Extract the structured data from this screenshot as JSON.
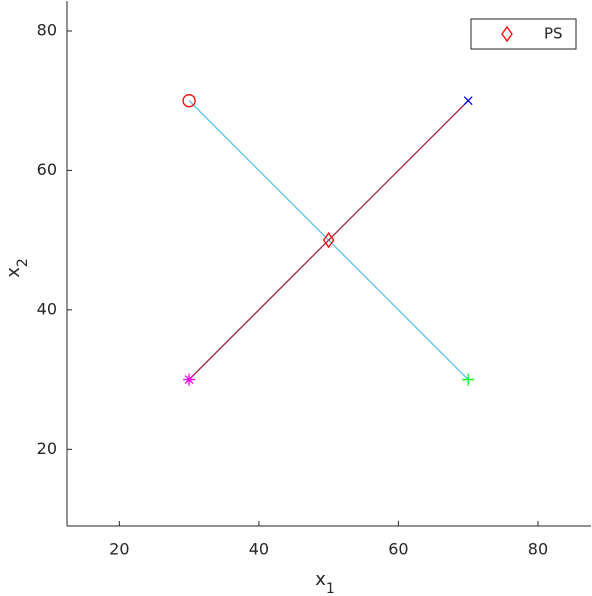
{
  "chart_data": {
    "type": "line",
    "xlabel": {
      "text": "x",
      "sub": "1"
    },
    "ylabel": {
      "text": "x",
      "sub": "2"
    },
    "xlim": [
      12.5,
      87.6
    ],
    "xticks": [
      20,
      40,
      60,
      80
    ],
    "ylim": [
      9,
      84.3
    ],
    "yticks": [
      20,
      40,
      60,
      80
    ],
    "grid": false,
    "legend": "northeast",
    "series": [
      {
        "color": "#4dbeee",
        "x": [
          30,
          70
        ],
        "values": [
          70,
          30
        ],
        "marker": "none",
        "line": true
      },
      {
        "color": "#a2142f",
        "x": [
          30,
          70
        ],
        "values": [
          30,
          70
        ],
        "marker": "none",
        "line": true
      },
      {
        "color": "#ff0000",
        "x": [
          30
        ],
        "values": [
          70
        ],
        "marker": "circle",
        "line": false
      },
      {
        "color": "#0000ff",
        "x": [
          70
        ],
        "values": [
          70
        ],
        "marker": "cross",
        "line": false
      },
      {
        "color": "#ff00ff",
        "x": [
          30
        ],
        "values": [
          30
        ],
        "marker": "asterisk",
        "line": false
      },
      {
        "color": "#00ff00",
        "x": [
          70
        ],
        "values": [
          30
        ],
        "marker": "plus",
        "line": false
      },
      {
        "name": "PS",
        "color": "#ff0000",
        "x": [
          50
        ],
        "values": [
          50
        ],
        "marker": "diamond",
        "line": false
      }
    ]
  }
}
